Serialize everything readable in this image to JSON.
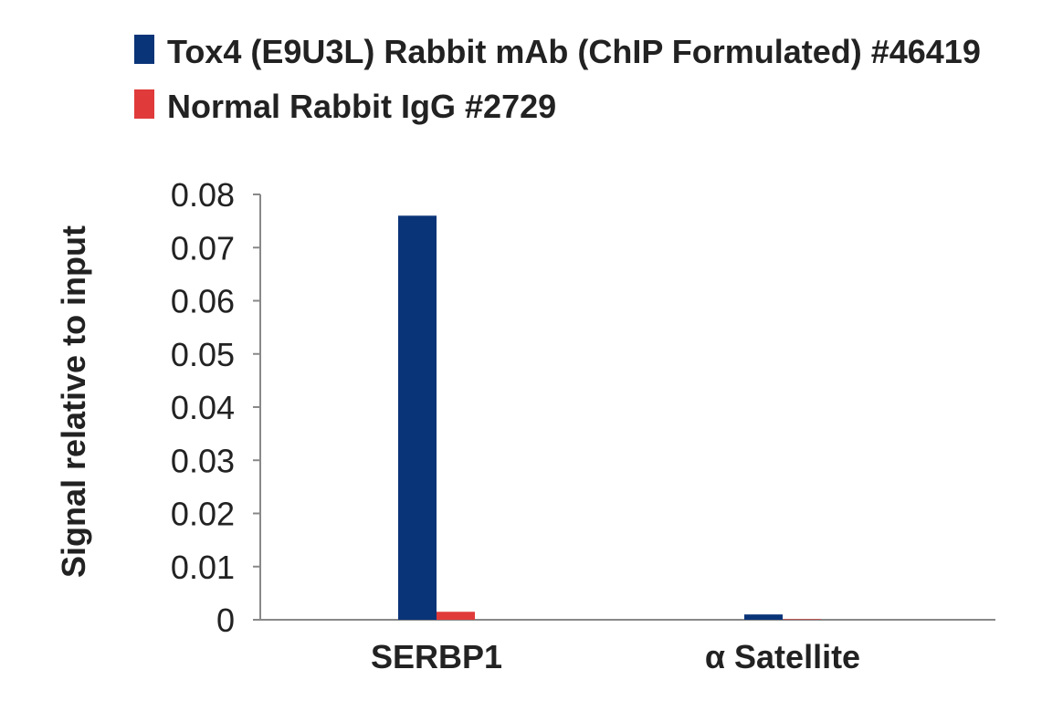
{
  "chart_data": {
    "type": "bar",
    "title": "",
    "xlabel": "",
    "ylabel": "Signal relative to input",
    "categories": [
      "SERBP1",
      "α Satellite"
    ],
    "series": [
      {
        "name": "Tox4 (E9U3L) Rabbit mAb (ChIP Formulated) #46419",
        "color": "#0a3478",
        "values": [
          0.076,
          0.001
        ]
      },
      {
        "name": "Normal Rabbit IgG #2729",
        "color": "#e03a3a",
        "values": [
          0.0015,
          0.0001
        ]
      }
    ],
    "ylim": [
      0,
      0.08
    ],
    "yticks": [
      "0",
      "0.01",
      "0.02",
      "0.03",
      "0.04",
      "0.05",
      "0.06",
      "0.07",
      "0.08"
    ],
    "grid": false,
    "legend_position": "top-left"
  }
}
